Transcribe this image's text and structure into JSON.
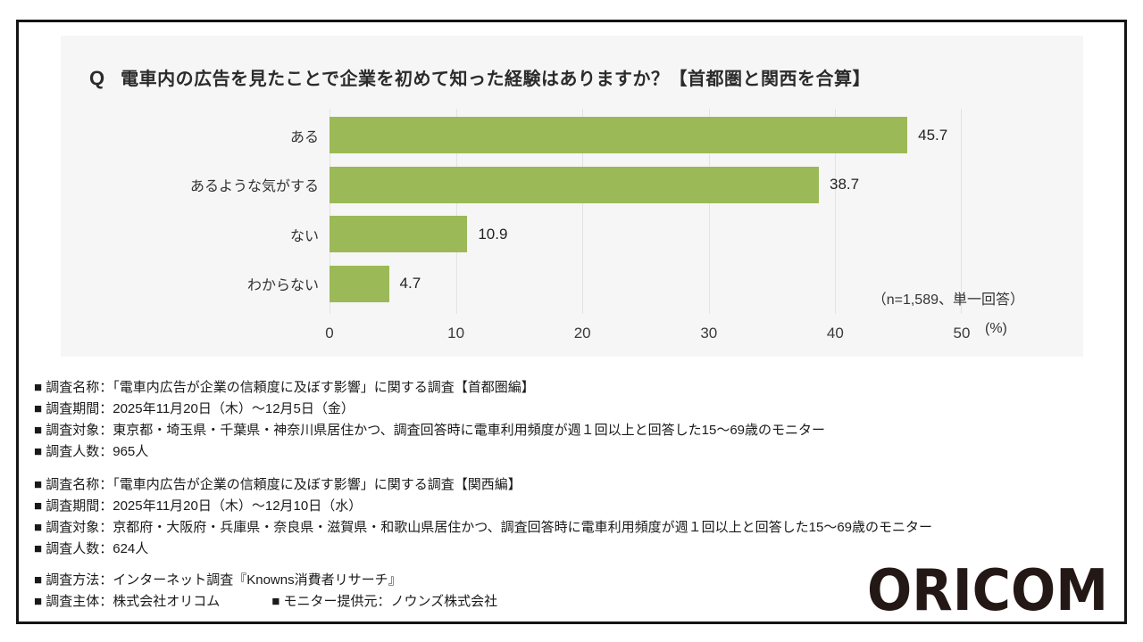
{
  "header": {
    "q_label": "Q",
    "title": "電車内の広告を見たことで企業を初めて知った経験はありますか？【首都圏と関西を合算】"
  },
  "chart_data": {
    "type": "bar",
    "orientation": "horizontal",
    "title": "電車内の広告を見たことで企業を初めて知った経験はありますか？【首都圏と関西を合算】",
    "categories": [
      "ある",
      "あるような気がする",
      "ない",
      "わからない"
    ],
    "values": [
      45.7,
      38.7,
      10.9,
      4.7
    ],
    "xlim": [
      0,
      50
    ],
    "xticks": [
      0,
      10,
      20,
      30,
      40,
      50
    ],
    "unit_label": "(%)",
    "sample_note": "（n=1,589、単一回答）",
    "bar_color": "#9BB957",
    "gridline_color": "#e3e3e3",
    "grid": true,
    "legend": "none"
  },
  "survey_info": {
    "block_shutoken": {
      "lines": [
        "■ 調査名称：「電車内広告が企業の信頼度に及ぼす影響」に関する調査【首都圏編】",
        "■ 調査期間：2025年11月20日（木）～12月5日（金）",
        "■ 調査対象：東京都・埼玉県・千葉県・神奈川県居住かつ、調査回答時に電車利用頻度が週１回以上と回答した15～69歳のモニター",
        "■ 調査人数：965人"
      ]
    },
    "block_kansai": {
      "lines": [
        "■ 調査名称：「電車内広告が企業の信頼度に及ぼす影響」に関する調査【関西編】",
        "■ 調査期間：2025年11月20日（木）～12月10日（水）",
        "■ 調査対象：京都府・大阪府・兵庫県・奈良県・滋賀県・和歌山県居住かつ、調査回答時に電車利用頻度が週１回以上と回答した15～69歳のモニター",
        "■ 調査人数：624人"
      ]
    },
    "method_line": "■ 調査方法：インターネット調査『Knowns消費者リサーチ』",
    "entity_line": "■ 調査主体：株式会社オリコム",
    "monitor_line": "■ モニター提供元：ノウンズ株式会社"
  },
  "logo": {
    "text": "ORICOM",
    "color": "#231815"
  }
}
